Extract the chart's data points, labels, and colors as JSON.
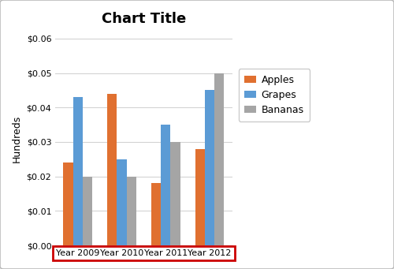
{
  "title": "Chart Title",
  "ylabel": "Hundreds",
  "categories": [
    "Year 2009",
    "Year 2010",
    "Year 2011",
    "Year 2012"
  ],
  "series": {
    "Apples": [
      0.024,
      0.044,
      0.018,
      0.028
    ],
    "Grapes": [
      0.043,
      0.025,
      0.035,
      0.045
    ],
    "Bananas": [
      0.02,
      0.02,
      0.03,
      0.05
    ]
  },
  "colors": {
    "Apples": "#E07030",
    "Grapes": "#5B9BD5",
    "Bananas": "#A5A5A5"
  },
  "ylim": [
    0,
    0.062
  ],
  "yticks": [
    0.0,
    0.01,
    0.02,
    0.03,
    0.04,
    0.05,
    0.06
  ],
  "bar_width": 0.22,
  "grid_color": "#D3D3D3",
  "bg_color": "#FFFFFF",
  "title_fontsize": 13,
  "axis_label_fontsize": 9,
  "tick_fontsize": 8,
  "legend_fontsize": 9,
  "highlight_box_color": "#CC0000",
  "outer_border_color": "#BBBBBB"
}
